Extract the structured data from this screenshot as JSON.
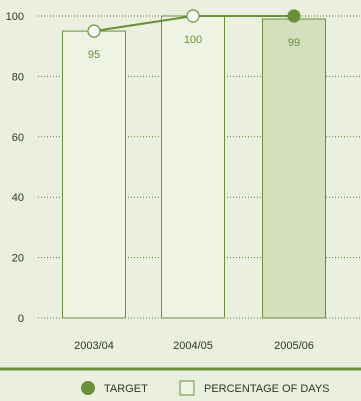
{
  "chart_data": {
    "type": "bar",
    "categories": [
      "2003/04",
      "2004/05",
      "2005/06"
    ],
    "series": [
      {
        "name": "PERCENTAGE OF DAYS",
        "values": [
          95,
          100,
          99
        ]
      },
      {
        "name": "TARGET",
        "values": [
          95,
          100,
          100
        ]
      }
    ],
    "ylim": [
      0,
      100
    ],
    "yticks": [
      0,
      20,
      40,
      60,
      80,
      100
    ],
    "grid": true,
    "legend_position": "bottom",
    "highlight_category": "2005/06"
  },
  "colors": {
    "background": "#eaefe0",
    "bar_fill": "#eef3e4",
    "bar_fill_highlight": "#d3dfbd",
    "bar_stroke": "#6a8f3a",
    "target_line": "#6a8f3a",
    "target_marker_fill": "#6a8f3a",
    "open_marker_fill": "#ffffff",
    "separator": "#6a8f3a"
  },
  "legend": {
    "target_label": "TARGET",
    "bars_label": "PERCENTAGE OF DAYS"
  }
}
